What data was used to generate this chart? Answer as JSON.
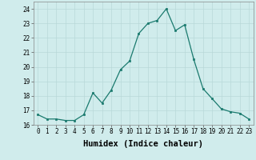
{
  "x": [
    0,
    1,
    2,
    3,
    4,
    5,
    6,
    7,
    8,
    9,
    10,
    11,
    12,
    13,
    14,
    15,
    16,
    17,
    18,
    19,
    20,
    21,
    22,
    23
  ],
  "y": [
    16.7,
    16.4,
    16.4,
    16.3,
    16.3,
    16.7,
    18.2,
    17.5,
    18.4,
    19.8,
    20.4,
    22.3,
    23.0,
    23.2,
    24.0,
    22.5,
    22.9,
    20.5,
    18.5,
    17.8,
    17.1,
    16.9,
    16.8,
    16.4
  ],
  "line_color": "#1a7a6e",
  "marker_color": "#1a7a6e",
  "bg_color": "#d0ecec",
  "grid_color": "#b8d8d8",
  "xlabel": "Humidex (Indice chaleur)",
  "ylim": [
    16,
    24.5
  ],
  "xlim": [
    -0.5,
    23.5
  ],
  "yticks": [
    16,
    17,
    18,
    19,
    20,
    21,
    22,
    23,
    24
  ],
  "xticks": [
    0,
    1,
    2,
    3,
    4,
    5,
    6,
    7,
    8,
    9,
    10,
    11,
    12,
    13,
    14,
    15,
    16,
    17,
    18,
    19,
    20,
    21,
    22,
    23
  ],
  "tick_fontsize": 5.5,
  "label_fontsize": 7.5
}
